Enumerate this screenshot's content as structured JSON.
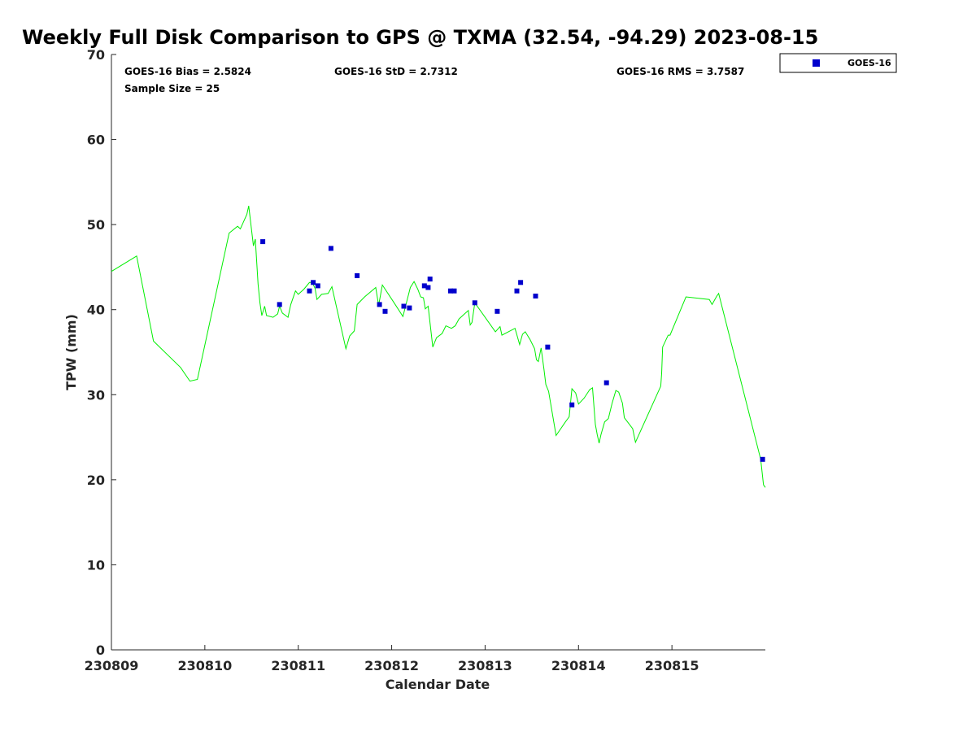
{
  "chart_data": {
    "type": "scatter",
    "title": "Weekly Full Disk Comparison to GPS @ TXMA (32.54, -94.29) 2023-08-15",
    "xlabel": "Calendar Date",
    "ylabel": "TPW (mm)",
    "xlim": [
      0,
      7
    ],
    "ylim": [
      0,
      70
    ],
    "x_ticks": [
      {
        "value": 0,
        "label": "230809"
      },
      {
        "value": 1,
        "label": "230810"
      },
      {
        "value": 2,
        "label": "230811"
      },
      {
        "value": 3,
        "label": "230812"
      },
      {
        "value": 4,
        "label": "230813"
      },
      {
        "value": 5,
        "label": "230814"
      },
      {
        "value": 6,
        "label": "230815"
      }
    ],
    "y_ticks": [
      0,
      10,
      20,
      30,
      40,
      50,
      60,
      70
    ],
    "stats": {
      "bias": "GOES-16 Bias = 2.5824",
      "std": "GOES-16 StD = 2.7312",
      "rms": "GOES-16 RMS = 3.7587",
      "sample": "Sample Size = 25"
    },
    "legend": {
      "position": "top-right",
      "entries": [
        {
          "label": "GOES-16",
          "color": "#0000cc"
        }
      ]
    },
    "gps_line": {
      "color": "#00ee00",
      "points": [
        [
          0.0,
          44.5
        ],
        [
          0.27,
          46.3
        ],
        [
          0.45,
          36.3
        ],
        [
          0.74,
          33.2
        ],
        [
          0.84,
          31.6
        ],
        [
          0.92,
          31.8
        ],
        [
          1.26,
          49.0
        ],
        [
          1.35,
          49.8
        ],
        [
          1.38,
          49.5
        ],
        [
          1.45,
          51.2
        ],
        [
          1.47,
          52.2
        ],
        [
          1.52,
          47.5
        ],
        [
          1.54,
          48.3
        ],
        [
          1.57,
          43.0
        ],
        [
          1.59,
          40.8
        ],
        [
          1.61,
          39.3
        ],
        [
          1.64,
          40.4
        ],
        [
          1.66,
          39.3
        ],
        [
          1.73,
          39.1
        ],
        [
          1.78,
          39.5
        ],
        [
          1.8,
          40.4
        ],
        [
          1.83,
          39.6
        ],
        [
          1.89,
          39.1
        ],
        [
          1.92,
          40.6
        ],
        [
          1.97,
          42.2
        ],
        [
          2.0,
          41.8
        ],
        [
          2.06,
          42.4
        ],
        [
          2.12,
          43.2
        ],
        [
          2.15,
          43.2
        ],
        [
          2.18,
          42.5
        ],
        [
          2.2,
          41.2
        ],
        [
          2.25,
          41.8
        ],
        [
          2.32,
          41.9
        ],
        [
          2.36,
          42.7
        ],
        [
          2.51,
          35.4
        ],
        [
          2.55,
          36.9
        ],
        [
          2.6,
          37.5
        ],
        [
          2.63,
          40.6
        ],
        [
          2.71,
          41.5
        ],
        [
          2.83,
          42.6
        ],
        [
          2.86,
          40.5
        ],
        [
          2.9,
          42.9
        ],
        [
          3.02,
          40.9
        ],
        [
          3.12,
          39.2
        ],
        [
          3.2,
          42.6
        ],
        [
          3.24,
          43.3
        ],
        [
          3.28,
          42.4
        ],
        [
          3.31,
          41.5
        ],
        [
          3.34,
          41.4
        ],
        [
          3.36,
          40.1
        ],
        [
          3.39,
          40.4
        ],
        [
          3.44,
          35.6
        ],
        [
          3.48,
          36.7
        ],
        [
          3.54,
          37.2
        ],
        [
          3.58,
          38.1
        ],
        [
          3.64,
          37.8
        ],
        [
          3.68,
          38.1
        ],
        [
          3.72,
          38.9
        ],
        [
          3.78,
          39.5
        ],
        [
          3.82,
          39.9
        ],
        [
          3.84,
          38.2
        ],
        [
          3.86,
          38.5
        ],
        [
          3.89,
          40.8
        ],
        [
          4.11,
          37.4
        ],
        [
          4.16,
          38.0
        ],
        [
          4.18,
          37.0
        ],
        [
          4.32,
          37.8
        ],
        [
          4.37,
          35.9
        ],
        [
          4.4,
          37.1
        ],
        [
          4.43,
          37.4
        ],
        [
          4.48,
          36.5
        ],
        [
          4.53,
          35.4
        ],
        [
          4.55,
          34.1
        ],
        [
          4.57,
          33.9
        ],
        [
          4.6,
          35.5
        ],
        [
          4.63,
          33.0
        ],
        [
          4.65,
          31.2
        ],
        [
          4.68,
          30.4
        ],
        [
          4.76,
          25.2
        ],
        [
          4.86,
          26.8
        ],
        [
          4.9,
          27.4
        ],
        [
          4.93,
          30.7
        ],
        [
          4.97,
          30.2
        ],
        [
          5.0,
          28.9
        ],
        [
          5.06,
          29.6
        ],
        [
          5.12,
          30.6
        ],
        [
          5.15,
          30.8
        ],
        [
          5.18,
          26.5
        ],
        [
          5.2,
          25.3
        ],
        [
          5.22,
          24.3
        ],
        [
          5.24,
          25.3
        ],
        [
          5.28,
          26.8
        ],
        [
          5.32,
          27.2
        ],
        [
          5.36,
          29.0
        ],
        [
          5.4,
          30.5
        ],
        [
          5.43,
          30.3
        ],
        [
          5.47,
          29.0
        ],
        [
          5.49,
          27.3
        ],
        [
          5.58,
          26.0
        ],
        [
          5.61,
          24.4
        ],
        [
          5.88,
          31.0
        ],
        [
          5.89,
          32.5
        ],
        [
          5.9,
          35.6
        ],
        [
          5.96,
          37.0
        ],
        [
          5.98,
          37.0
        ],
        [
          6.15,
          41.5
        ],
        [
          6.4,
          41.2
        ],
        [
          6.43,
          40.6
        ],
        [
          6.48,
          41.6
        ],
        [
          6.5,
          41.9
        ],
        [
          6.95,
          22.4
        ],
        [
          6.98,
          19.4
        ],
        [
          7.0,
          19.1
        ]
      ]
    },
    "series": [
      {
        "name": "GOES-16",
        "x": [
          1.62,
          1.8,
          2.12,
          2.16,
          2.21,
          2.35,
          2.63,
          2.87,
          2.93,
          3.13,
          3.19,
          3.35,
          3.39,
          3.41,
          3.63,
          3.67,
          3.89,
          4.13,
          4.34,
          4.38,
          4.54,
          4.67,
          4.93,
          5.3,
          6.97
        ],
        "y": [
          48.0,
          40.6,
          42.2,
          43.2,
          42.8,
          47.2,
          44.0,
          40.6,
          39.8,
          40.4,
          40.2,
          42.8,
          42.6,
          43.6,
          42.2,
          42.2,
          40.8,
          39.8,
          42.2,
          43.2,
          41.6,
          35.6,
          28.8,
          31.4,
          22.4
        ]
      }
    ]
  }
}
